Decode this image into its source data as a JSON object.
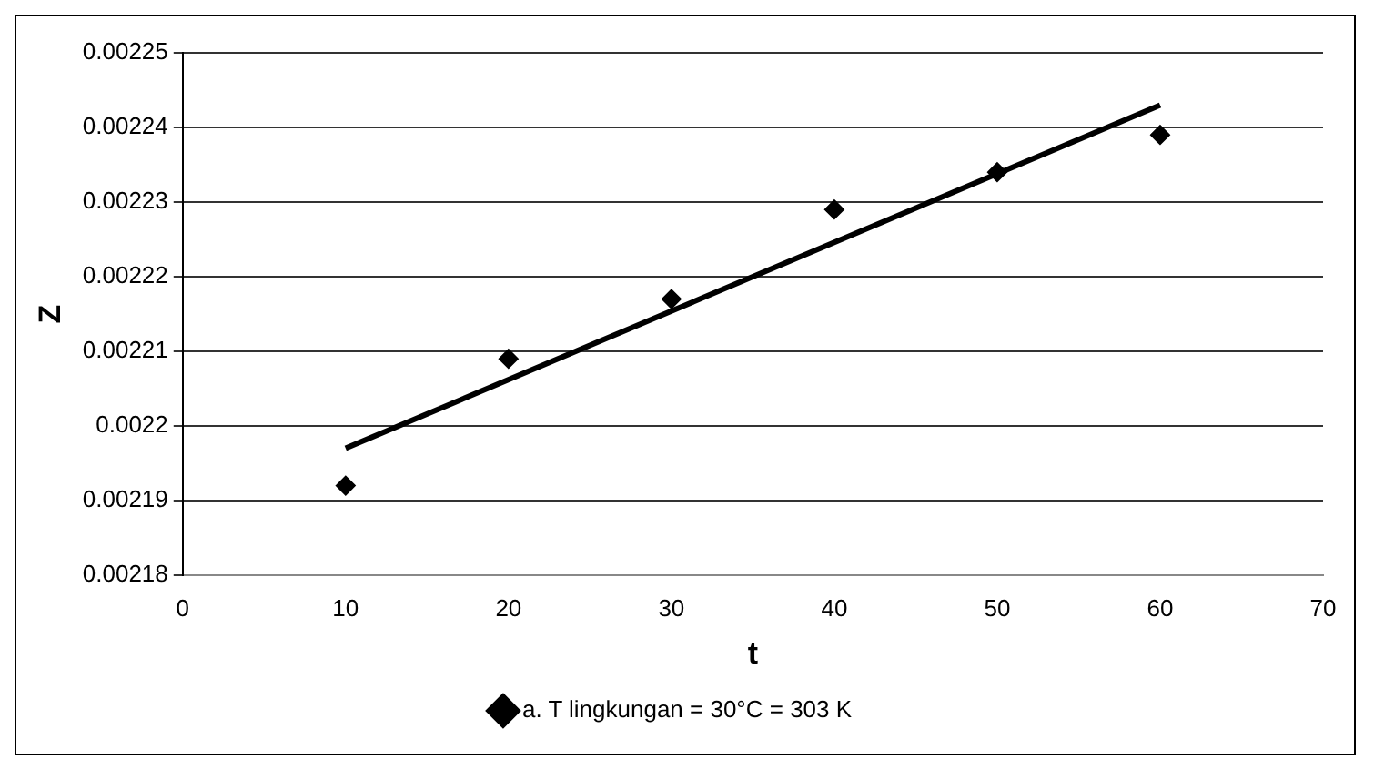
{
  "chart_data": {
    "type": "scatter",
    "xlabel": "t",
    "ylabel": "Z",
    "series": [
      {
        "name": "a. T lingkungan = 30°C = 303 K",
        "color": "#000000",
        "x": [
          10,
          20,
          30,
          40,
          50,
          60
        ],
        "values": [
          0.002192,
          0.002209,
          0.002217,
          0.002229,
          0.002234,
          0.002239
        ],
        "marker": "diamond"
      },
      {
        "type": "line",
        "color": "#000000",
        "x": [
          10,
          60
        ],
        "values": [
          0.002197,
          0.002243
        ],
        "marker": "none",
        "line_style": "solid"
      }
    ],
    "xlim": [
      0,
      70
    ],
    "xticks": [
      0,
      10,
      20,
      30,
      40,
      50,
      60,
      70
    ],
    "ylim": [
      0.00218,
      0.00225
    ],
    "yticks": [
      0.00218,
      0.00219,
      0.0022,
      0.00221,
      0.00222,
      0.00223,
      0.00224,
      0.00225
    ],
    "grid": "y",
    "legend": "bottom"
  }
}
